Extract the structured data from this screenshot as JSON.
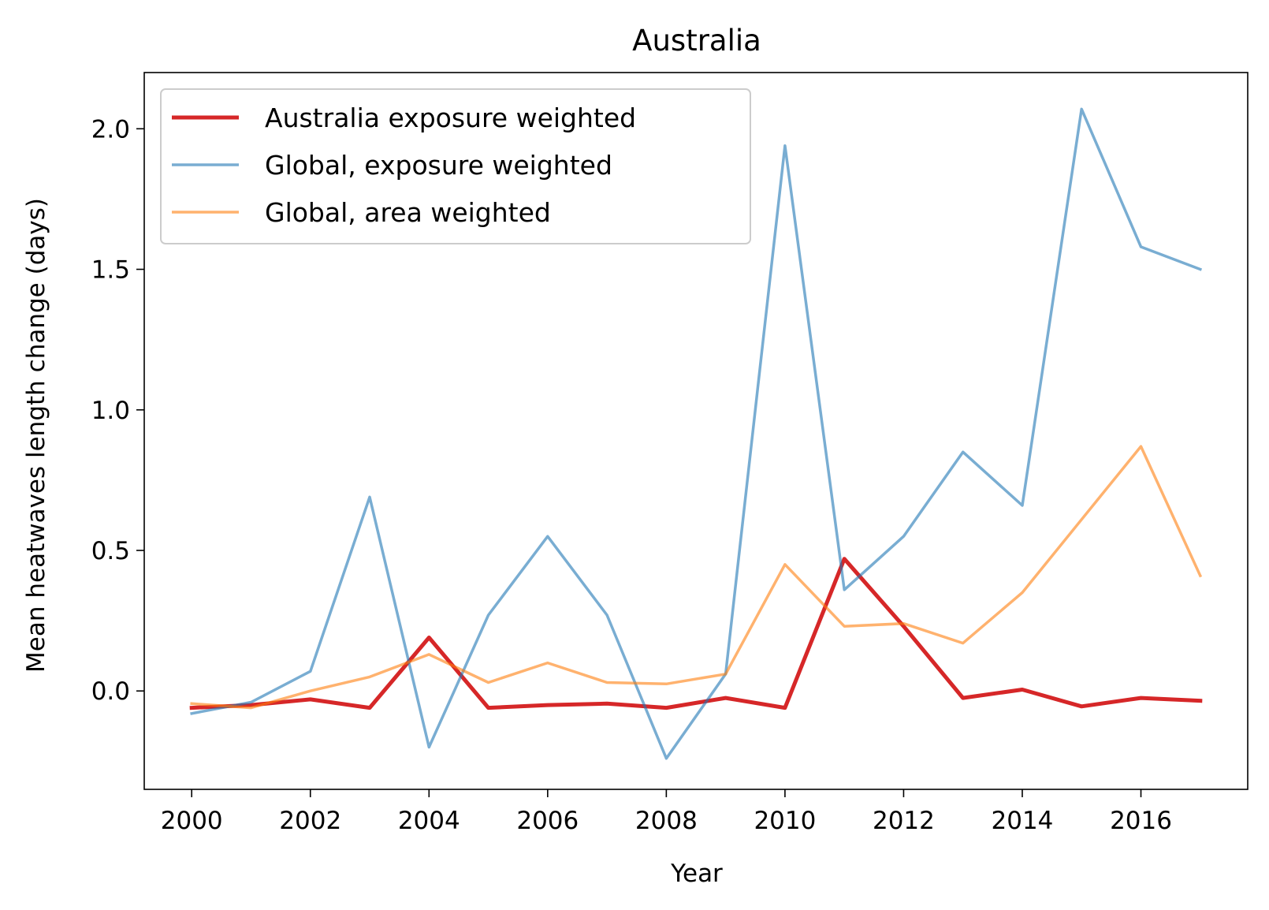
{
  "chart_data": {
    "type": "line",
    "title": "Australia",
    "xlabel": "Year",
    "ylabel": "Mean heatwaves length change (days)",
    "xlim": [
      1999.2,
      2017.8
    ],
    "ylim": [
      -0.35,
      2.2
    ],
    "x_ticks": [
      "2000",
      "2002",
      "2004",
      "2006",
      "2008",
      "2010",
      "2012",
      "2014",
      "2016"
    ],
    "y_ticks": [
      "0.0",
      "0.5",
      "1.0",
      "1.5",
      "2.0"
    ],
    "grid": false,
    "legend_position": "upper-left",
    "x": [
      2000,
      2001,
      2002,
      2003,
      2004,
      2005,
      2006,
      2007,
      2008,
      2009,
      2010,
      2011,
      2012,
      2013,
      2014,
      2015,
      2016,
      2017
    ],
    "series": [
      {
        "name": "Australia exposure weighted",
        "color": "#d62728",
        "opacity": 1.0,
        "width": "thick",
        "values": [
          -0.06,
          -0.05,
          -0.03,
          -0.06,
          0.19,
          -0.06,
          -0.05,
          -0.045,
          -0.06,
          -0.025,
          -0.06,
          0.47,
          0.23,
          -0.025,
          0.005,
          -0.055,
          -0.025,
          -0.035
        ]
      },
      {
        "name": "Global, exposure weighted",
        "color": "#1f77b4",
        "opacity": 0.6,
        "width": "thin",
        "values": [
          -0.08,
          -0.04,
          0.07,
          0.69,
          -0.2,
          0.27,
          0.55,
          0.27,
          -0.24,
          0.06,
          1.94,
          0.36,
          0.55,
          0.85,
          0.66,
          2.07,
          1.58,
          1.5
        ]
      },
      {
        "name": "Global, area weighted",
        "color": "#ff7f0e",
        "opacity": 0.6,
        "width": "thin",
        "values": [
          -0.045,
          -0.06,
          0.0,
          0.05,
          0.13,
          0.03,
          0.1,
          0.03,
          0.025,
          0.06,
          0.45,
          0.23,
          0.24,
          0.17,
          0.35,
          0.61,
          0.87,
          0.41
        ]
      }
    ]
  }
}
